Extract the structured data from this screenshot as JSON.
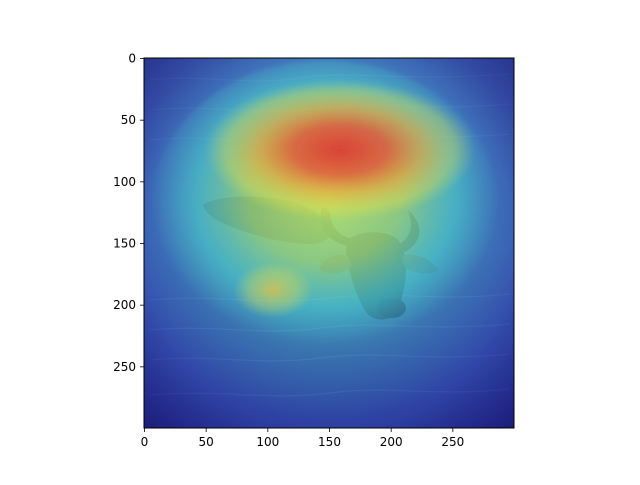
{
  "image": {
    "subject": "water buffalo swimming in water",
    "overlay": "heatmap",
    "colormap": "jet"
  },
  "axes": {
    "x_ticks": [
      "0",
      "50",
      "100",
      "150",
      "200",
      "250"
    ],
    "y_ticks": [
      "0",
      "50",
      "100",
      "150",
      "200",
      "250"
    ],
    "x_tick_values": [
      0,
      50,
      100,
      150,
      200,
      250
    ],
    "y_tick_values": [
      0,
      50,
      100,
      150,
      200,
      250
    ],
    "xlim": [
      0,
      300
    ],
    "ylim": [
      300,
      0
    ]
  },
  "colors": {
    "water_base": "#4f6f86",
    "heat_low": "#2b2fc9",
    "heat_mid": "#46e0c8",
    "heat_high": "#e2322b",
    "frame": "#000000"
  }
}
